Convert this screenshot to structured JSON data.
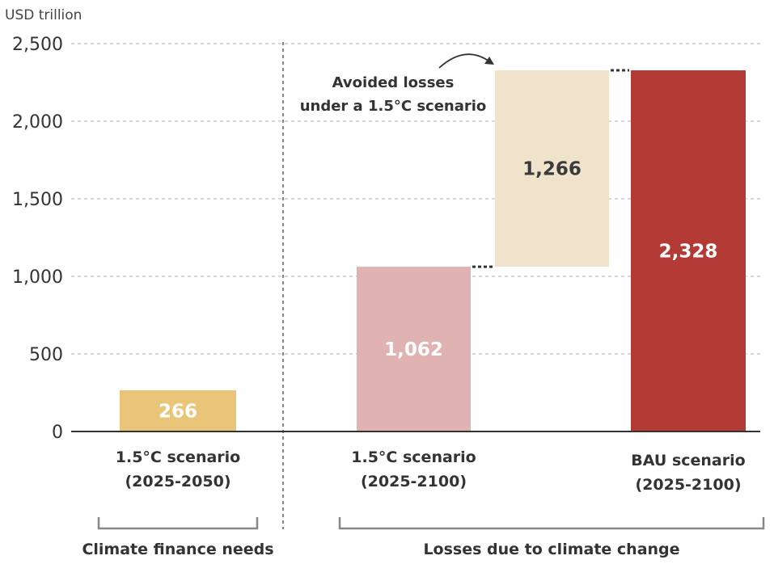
{
  "chart_data": {
    "type": "bar",
    "ylabel": "USD trillion",
    "ylim": [
      0,
      2500
    ],
    "yticks": [
      0,
      500,
      1000,
      1500,
      2000,
      2500
    ],
    "ytick_labels": [
      "0",
      "500",
      "1,000",
      "1,500",
      "2,000",
      "2,500"
    ],
    "grid": true,
    "bars": [
      {
        "id": "finance-needs",
        "label_lines": [
          "1.5°C scenario",
          "(2025-2050)"
        ],
        "base": 0,
        "value": 266,
        "value_label": "266",
        "color": "#E9C579",
        "text_color": "#ffffff"
      },
      {
        "id": "losses-1p5",
        "label_lines": [
          "1.5°C scenario",
          "(2025-2100)"
        ],
        "base": 0,
        "value": 1062,
        "value_label": "1,062",
        "color": "#E0B2B1",
        "text_color": "#ffffff"
      },
      {
        "id": "avoided-losses",
        "label_lines": [],
        "base": 1062,
        "value": 1266,
        "value_label": "1,266",
        "color": "#F0E3CB",
        "text_color": "#3a3a3a"
      },
      {
        "id": "losses-bau",
        "label_lines": [
          "BAU scenario",
          "(2025-2100)"
        ],
        "base": 0,
        "value": 2328,
        "value_label": "2,328",
        "color": "#B33A35",
        "text_color": "#ffffff"
      }
    ],
    "annotation": {
      "lines": [
        "Avoided losses",
        "under a 1.5°C scenario"
      ]
    },
    "groups": [
      {
        "id": "climate-finance-needs",
        "label": "Climate finance needs"
      },
      {
        "id": "losses-due-to-climate-change",
        "label": "Losses due to climate change"
      }
    ]
  }
}
